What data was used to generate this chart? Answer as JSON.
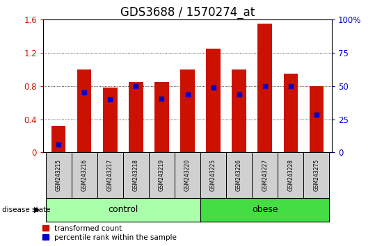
{
  "title": "GDS3688 / 1570274_at",
  "samples": [
    "GSM243215",
    "GSM243216",
    "GSM243217",
    "GSM243218",
    "GSM243219",
    "GSM243220",
    "GSM243225",
    "GSM243226",
    "GSM243227",
    "GSM243228",
    "GSM243275"
  ],
  "transformed_count": [
    0.32,
    1.0,
    0.78,
    0.85,
    0.85,
    1.0,
    1.25,
    1.0,
    1.55,
    0.95,
    0.8
  ],
  "percentile_rank_scaled": [
    0.1,
    0.72,
    0.64,
    0.8,
    0.65,
    0.7,
    0.78,
    0.7,
    0.8,
    0.8,
    0.46
  ],
  "groups": [
    {
      "label": "control",
      "start": 0,
      "end": 5,
      "color": "#AAFFAA"
    },
    {
      "label": "obese",
      "start": 6,
      "end": 10,
      "color": "#44DD44"
    }
  ],
  "left_ylim": [
    0,
    1.6
  ],
  "right_ylim": [
    0,
    100
  ],
  "left_yticks": [
    0,
    0.4,
    0.8,
    1.2,
    1.6
  ],
  "right_yticks": [
    0,
    25,
    50,
    75,
    100
  ],
  "right_yticklabels": [
    "0",
    "25",
    "50",
    "75",
    "100%"
  ],
  "bar_color": "#CC1100",
  "dot_color": "#0000CC",
  "plot_bg": "#ffffff",
  "sample_box_bg": "#d0d0d0",
  "title_fontsize": 12,
  "bar_width": 0.55,
  "disease_state_label": "disease state"
}
